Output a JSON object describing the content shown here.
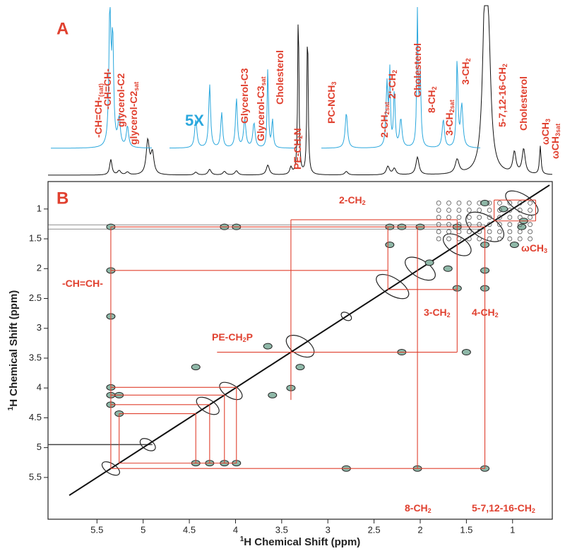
{
  "chart_data": {
    "type": "cosy",
    "panels": [
      "A",
      "B"
    ],
    "scale_label": "5X",
    "xlabel": {
      "sup": "1",
      "text": "H Chemical Shift (ppm)"
    },
    "ylabel": {
      "sup": "1",
      "text": "H Chemical Shift (ppm)"
    },
    "xlim": [
      6.03,
      0.57
    ],
    "ylim": [
      0.54,
      6.2
    ],
    "xticks": [
      5.5,
      5.0,
      4.5,
      4.0,
      3.5,
      3.0,
      2.5,
      2.0,
      1.5,
      1.0
    ],
    "yticks": [
      1.0,
      1.5,
      2.0,
      2.5,
      3.0,
      3.5,
      4.0,
      4.5,
      5.0,
      5.5
    ],
    "spectrum_labels": [
      {
        "text": "-CH=CH-",
        "sub": "(sat)"
      },
      {
        "text": "-CH=CH-"
      },
      {
        "text": "glycerol-C2"
      },
      {
        "text": "glycerol-C2",
        "sub": "sat"
      },
      {
        "text": "Glycerol-C3"
      },
      {
        "text": "Glycerol-C3",
        "sub": "sat"
      },
      {
        "text": "Cholesterol"
      },
      {
        "text": "PE-CH",
        "sub": "2",
        "after": "N"
      },
      {
        "text": "PC-NCH",
        "sub": "3"
      },
      {
        "text": "2-CH",
        "sub": "2sat"
      },
      {
        "text": "2'-CH",
        "sub": "2"
      },
      {
        "text": "Cholesterol"
      },
      {
        "text": "8-CH",
        "sub": "2"
      },
      {
        "text": "3-CH",
        "sub": "2sat"
      },
      {
        "text": "3-CH",
        "sub": "2"
      },
      {
        "text": "5-7,12-16-CH",
        "sub": "2"
      },
      {
        "text": "Cholesterol"
      },
      {
        "text": "ωCH",
        "sub": "3"
      },
      {
        "text": "ωCH",
        "sub": "3sat"
      }
    ],
    "cosy_labels": [
      {
        "text": "2-CH",
        "sub": "2"
      },
      {
        "text": "ωCH",
        "sub": "3"
      },
      {
        "text": "-CH=CH-"
      },
      {
        "text": "PE-CH",
        "sub": "2",
        "after": "P"
      },
      {
        "text": "3-CH",
        "sub": "2"
      },
      {
        "text": "4-CH",
        "sub": "2"
      },
      {
        "text": "8-CH",
        "sub": "2"
      },
      {
        "text": "5-7,12-16-CH",
        "sub": "2"
      }
    ]
  }
}
